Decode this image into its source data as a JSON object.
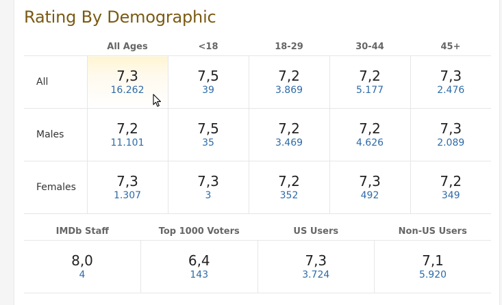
{
  "title": "Rating By Demographic",
  "columns": [
    "",
    "All Ages",
    "<18",
    "18-29",
    "30-44",
    "45+"
  ],
  "rows": [
    {
      "label": "All",
      "cells": [
        {
          "rating": "7,3",
          "votes": "16.262"
        },
        {
          "rating": "7,5",
          "votes": "39"
        },
        {
          "rating": "7,2",
          "votes": "3.869"
        },
        {
          "rating": "7,2",
          "votes": "5.177"
        },
        {
          "rating": "7,3",
          "votes": "2.476"
        }
      ]
    },
    {
      "label": "Males",
      "cells": [
        {
          "rating": "7,2",
          "votes": "11.101"
        },
        {
          "rating": "7,5",
          "votes": "35"
        },
        {
          "rating": "7,2",
          "votes": "3.469"
        },
        {
          "rating": "7,2",
          "votes": "4.626"
        },
        {
          "rating": "7,3",
          "votes": "2.089"
        }
      ]
    },
    {
      "label": "Females",
      "cells": [
        {
          "rating": "7,3",
          "votes": "1.307"
        },
        {
          "rating": "7,3",
          "votes": "3"
        },
        {
          "rating": "7,2",
          "votes": "352"
        },
        {
          "rating": "7,3",
          "votes": "492"
        },
        {
          "rating": "7,2",
          "votes": "349"
        }
      ]
    }
  ],
  "groups": {
    "headers": [
      "IMDb Staff",
      "Top 1000 Voters",
      "US Users",
      "Non-US Users"
    ],
    "cells": [
      {
        "rating": "8,0",
        "votes": "4"
      },
      {
        "rating": "6,4",
        "votes": "143"
      },
      {
        "rating": "7,3",
        "votes": "3.724"
      },
      {
        "rating": "7,1",
        "votes": "5.920"
      }
    ]
  },
  "colors": {
    "title": "#7a5a13",
    "votes_link": "#2c6aa8",
    "highlight": "#fff5d2"
  },
  "icons": {
    "cursor": "mouse-pointer-icon"
  }
}
